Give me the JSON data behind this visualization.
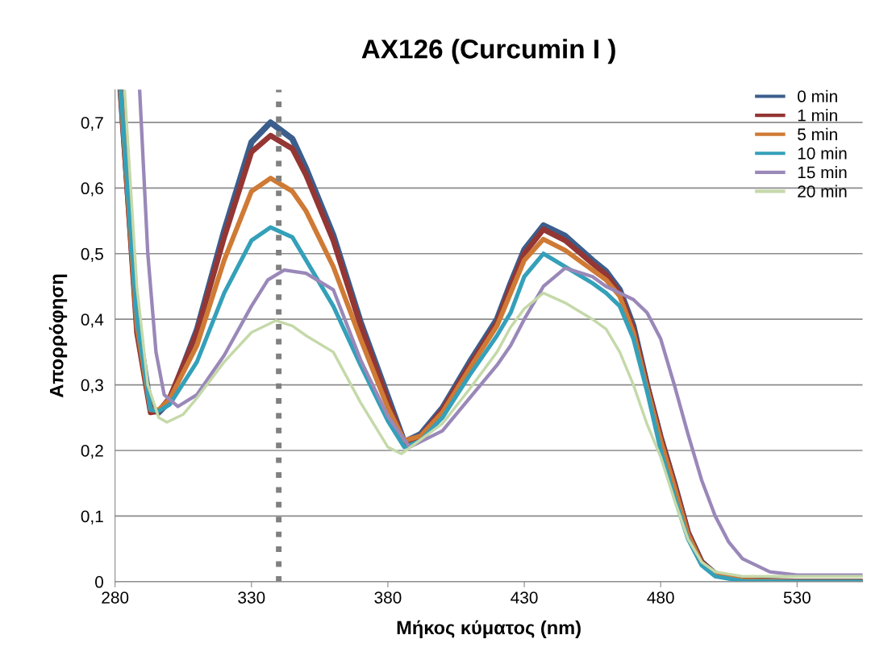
{
  "chart_data": {
    "type": "line",
    "title": "AX126 (Curcumin I )",
    "xlabel": "Μήκος κύματος (nm)",
    "ylabel": "Απορρόφηση",
    "xlim": [
      280,
      554
    ],
    "xticks": [
      280,
      330,
      380,
      430,
      480,
      530
    ],
    "ylim": [
      0,
      0.75
    ],
    "yticks": [
      {
        "value": 0,
        "label": "0"
      },
      {
        "value": 0.1,
        "label": "0,1"
      },
      {
        "value": 0.2,
        "label": "0,2"
      },
      {
        "value": 0.3,
        "label": "0,3"
      },
      {
        "value": 0.4,
        "label": "0,4"
      },
      {
        "value": 0.5,
        "label": "0,5"
      },
      {
        "value": 0.6,
        "label": "0,6"
      },
      {
        "value": 0.7,
        "label": "0,7"
      }
    ],
    "grid": "y",
    "legend": "top right",
    "marker": "none",
    "line_style": "solid",
    "ref_lines": [
      {
        "axis": "x",
        "value": 340,
        "color": "#808080",
        "line_style": "dotted"
      }
    ],
    "series": [
      {
        "name": "0 min",
        "color": "#3b5e8c",
        "x": [
          282,
          288,
          293,
          296,
          300,
          310,
          320,
          330,
          337,
          345,
          350,
          360,
          370,
          380,
          386,
          392,
          400,
          410,
          420,
          425,
          430,
          437,
          445,
          455,
          460,
          465,
          470,
          475,
          480,
          485,
          490,
          495,
          500,
          510,
          530,
          554
        ],
        "values": [
          0.75,
          0.4,
          0.265,
          0.258,
          0.275,
          0.384,
          0.535,
          0.67,
          0.7,
          0.675,
          0.63,
          0.528,
          0.396,
          0.282,
          0.213,
          0.225,
          0.265,
          0.335,
          0.4,
          0.455,
          0.506,
          0.543,
          0.527,
          0.49,
          0.473,
          0.445,
          0.39,
          0.3,
          0.22,
          0.15,
          0.075,
          0.03,
          0.012,
          0.002,
          0,
          0
        ]
      },
      {
        "name": "1 min",
        "color": "#943634",
        "x": [
          282,
          288,
          293,
          296,
          300,
          310,
          320,
          330,
          337,
          345,
          350,
          360,
          370,
          380,
          386,
          392,
          400,
          410,
          420,
          425,
          430,
          437,
          445,
          455,
          460,
          465,
          470,
          475,
          480,
          485,
          490,
          495,
          500,
          510,
          530,
          554
        ],
        "values": [
          0.75,
          0.38,
          0.258,
          0.26,
          0.28,
          0.38,
          0.525,
          0.655,
          0.68,
          0.66,
          0.62,
          0.52,
          0.39,
          0.275,
          0.212,
          0.222,
          0.262,
          0.33,
          0.395,
          0.45,
          0.5,
          0.537,
          0.52,
          0.485,
          0.468,
          0.44,
          0.385,
          0.3,
          0.22,
          0.15,
          0.075,
          0.03,
          0.012,
          0.002,
          0,
          0
        ]
      },
      {
        "name": "5 min",
        "color": "#cf7a35",
        "x": [
          282,
          288,
          293,
          296,
          300,
          310,
          320,
          330,
          337,
          345,
          350,
          360,
          370,
          380,
          386,
          392,
          400,
          410,
          420,
          425,
          430,
          437,
          445,
          455,
          460,
          465,
          470,
          475,
          480,
          485,
          490,
          495,
          500,
          510,
          530,
          554
        ],
        "values": [
          0.75,
          0.39,
          0.262,
          0.262,
          0.278,
          0.36,
          0.49,
          0.595,
          0.615,
          0.595,
          0.565,
          0.48,
          0.37,
          0.265,
          0.215,
          0.222,
          0.258,
          0.325,
          0.39,
          0.44,
          0.49,
          0.522,
          0.505,
          0.475,
          0.46,
          0.435,
          0.38,
          0.295,
          0.215,
          0.145,
          0.072,
          0.028,
          0.011,
          0.002,
          0,
          0
        ]
      },
      {
        "name": "10 min",
        "color": "#34a0b9",
        "x": [
          282,
          288,
          293,
          296,
          300,
          310,
          320,
          330,
          337,
          345,
          350,
          360,
          370,
          380,
          386,
          392,
          400,
          410,
          420,
          425,
          430,
          437,
          445,
          455,
          460,
          465,
          470,
          475,
          480,
          485,
          490,
          495,
          500,
          510,
          530,
          554
        ],
        "values": [
          0.75,
          0.4,
          0.262,
          0.26,
          0.27,
          0.335,
          0.44,
          0.52,
          0.54,
          0.525,
          0.49,
          0.42,
          0.33,
          0.245,
          0.205,
          0.215,
          0.25,
          0.315,
          0.375,
          0.41,
          0.465,
          0.5,
          0.48,
          0.455,
          0.44,
          0.42,
          0.37,
          0.29,
          0.2,
          0.13,
          0.065,
          0.025,
          0.008,
          0.001,
          0,
          0
        ]
      },
      {
        "name": "15 min",
        "color": "#9a88b9",
        "x": [
          289,
          292,
          295,
          298,
          303,
          310,
          320,
          330,
          336,
          342,
          350,
          360,
          370,
          380,
          388,
          400,
          410,
          420,
          425,
          430,
          437,
          445,
          455,
          460,
          465,
          470,
          475,
          480,
          485,
          490,
          495,
          500,
          505,
          510,
          520,
          530,
          554
        ],
        "values": [
          0.75,
          0.5,
          0.35,
          0.285,
          0.267,
          0.285,
          0.345,
          0.42,
          0.46,
          0.475,
          0.47,
          0.445,
          0.338,
          0.252,
          0.205,
          0.23,
          0.28,
          0.33,
          0.36,
          0.4,
          0.45,
          0.478,
          0.465,
          0.45,
          0.44,
          0.43,
          0.41,
          0.37,
          0.3,
          0.225,
          0.155,
          0.1,
          0.06,
          0.035,
          0.015,
          0.01,
          0.01
        ]
      },
      {
        "name": "20 min",
        "color": "#c5d9a9",
        "x": [
          283.5,
          288,
          292,
          296,
          299,
          305,
          310,
          320,
          330,
          339,
          345,
          350,
          360,
          370,
          380,
          385,
          400,
          410,
          420,
          425,
          430,
          437,
          445,
          455,
          460,
          465,
          470,
          475,
          480,
          485,
          490,
          495,
          500,
          510,
          554
        ],
        "values": [
          0.75,
          0.45,
          0.3,
          0.25,
          0.243,
          0.255,
          0.28,
          0.335,
          0.38,
          0.398,
          0.39,
          0.375,
          0.35,
          0.273,
          0.205,
          0.195,
          0.241,
          0.294,
          0.35,
          0.388,
          0.416,
          0.44,
          0.425,
          0.4,
          0.385,
          0.35,
          0.3,
          0.24,
          0.19,
          0.125,
          0.065,
          0.03,
          0.015,
          0.008,
          0.008
        ]
      }
    ]
  }
}
